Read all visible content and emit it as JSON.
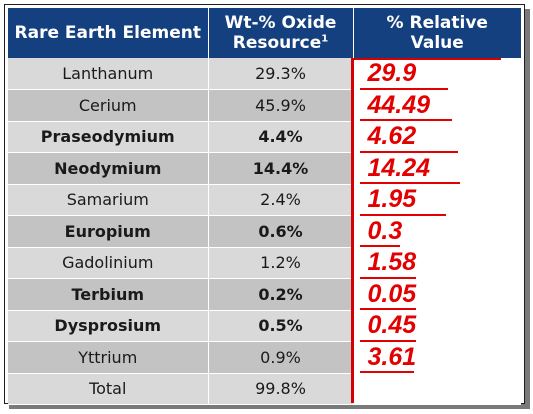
{
  "table": {
    "headers": {
      "element": "Rare Earth Element",
      "oxide_line1": "Wt-% Oxide",
      "oxide_line2": "Resource",
      "oxide_footnote": "1",
      "relative_line1": "% Relative",
      "relative_line2": "Value"
    },
    "rows": [
      {
        "element": "Lanthanum",
        "oxide": "29.3%",
        "relative": "29.9"
      },
      {
        "element": "Cerium",
        "oxide": "45.9%",
        "relative": "44.49"
      },
      {
        "element": "Praseodymium",
        "oxide": "4.4%",
        "relative": "4.62"
      },
      {
        "element": "Neodymium",
        "oxide": "14.4%",
        "relative": "14.24"
      },
      {
        "element": "Samarium",
        "oxide": "2.4%",
        "relative": "1.95"
      },
      {
        "element": "Europium",
        "oxide": "0.6%",
        "relative": "0.3"
      },
      {
        "element": "Gadolinium",
        "oxide": "1.2%",
        "relative": "1.58"
      },
      {
        "element": "Terbium",
        "oxide": "0.2%",
        "relative": "0.05"
      },
      {
        "element": "Dysprosium",
        "oxide": "0.5%",
        "relative": "0.45"
      },
      {
        "element": "Yttrium",
        "oxide": "0.9%",
        "relative": "3.61"
      },
      {
        "element": "Total",
        "oxide": "99.8%",
        "relative": ""
      }
    ]
  },
  "colors": {
    "header_bg": "#15407f",
    "row_light": "#d9d9d9",
    "row_dark": "#c3c3c3",
    "annotation_red": "#e30000"
  }
}
